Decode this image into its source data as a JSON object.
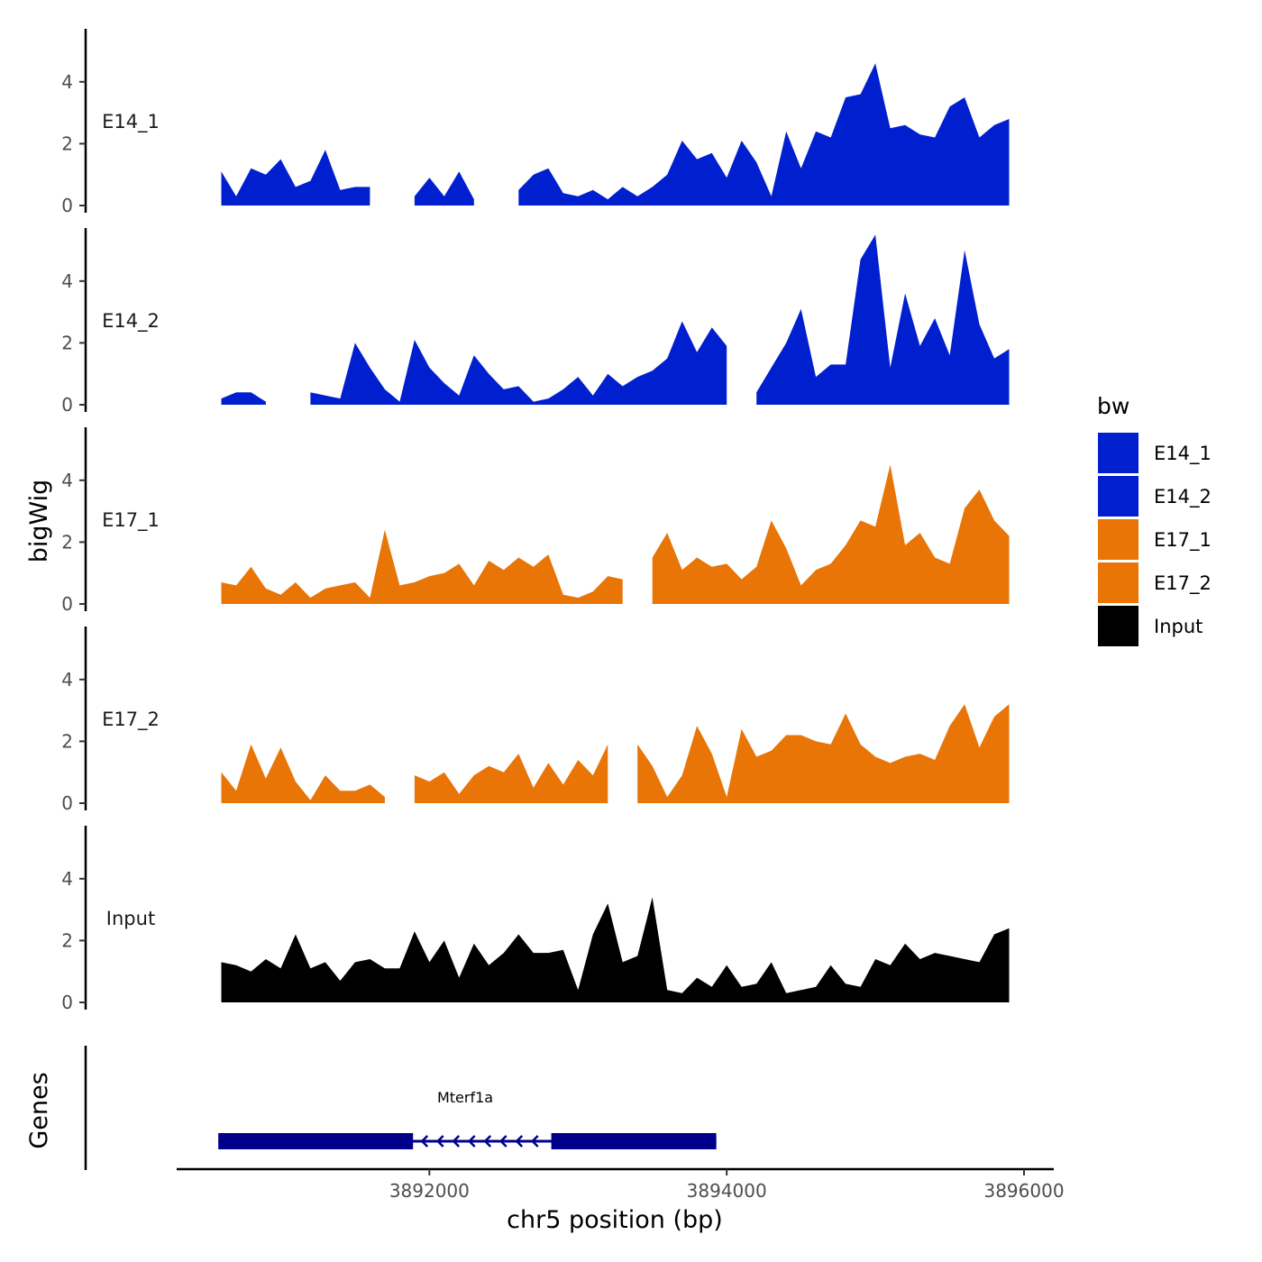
{
  "chart_data": {
    "type": "area",
    "title": "",
    "ylabel": "bigWig",
    "xlabel": "chr5 position (bp)",
    "genes_label": "Genes",
    "xlim": [
      3890300,
      3896200
    ],
    "ylim": [
      0,
      5.7
    ],
    "x_ticks": [
      3892000,
      3894000,
      3896000
    ],
    "x_tick_labels": [
      "3892000",
      "3894000",
      "3896000"
    ],
    "y_ticks": [
      0,
      2,
      4
    ],
    "y_tick_labels": [
      "0",
      "2",
      "4"
    ],
    "legend": {
      "title": "bw",
      "position": "right",
      "entries": [
        {
          "label": "E14_1",
          "color": "#0020D0"
        },
        {
          "label": "E14_2",
          "color": "#0020D0"
        },
        {
          "label": "E17_1",
          "color": "#E87506"
        },
        {
          "label": "E17_2",
          "color": "#E87506"
        },
        {
          "label": "Input",
          "color": "#000000"
        }
      ]
    },
    "series": [
      {
        "name": "E14_1",
        "color": "#0020D0",
        "x": [
          3890600,
          3890700,
          3890800,
          3890900,
          3891000,
          3891100,
          3891200,
          3891300,
          3891400,
          3891500,
          3891600,
          3891700,
          3891800,
          3891900,
          3892000,
          3892100,
          3892200,
          3892300,
          3892400,
          3892500,
          3892600,
          3892700,
          3892800,
          3892900,
          3893000,
          3893100,
          3893200,
          3893300,
          3893400,
          3893500,
          3893600,
          3893700,
          3893800,
          3893900,
          3894000,
          3894100,
          3894200,
          3894300,
          3894400,
          3894500,
          3894600,
          3894700,
          3894800,
          3894900,
          3895000,
          3895100,
          3895200,
          3895300,
          3895400,
          3895500,
          3895600,
          3895700,
          3895800,
          3895900
        ],
        "values": [
          1.1,
          0.3,
          1.2,
          1.0,
          1.5,
          0.6,
          0.8,
          1.8,
          0.5,
          0.6,
          0.6,
          null,
          null,
          0.3,
          0.9,
          0.3,
          1.1,
          0.2,
          null,
          null,
          0.5,
          1.0,
          1.2,
          0.4,
          0.3,
          0.5,
          0.2,
          0.6,
          0.3,
          0.6,
          1.0,
          2.1,
          1.5,
          1.7,
          0.9,
          2.1,
          1.4,
          0.3,
          2.4,
          1.2,
          2.4,
          2.2,
          3.5,
          3.6,
          4.6,
          2.5,
          2.6,
          2.3,
          2.2,
          3.2,
          3.5,
          2.2,
          2.6,
          2.8
        ],
        "label": "E14_1"
      },
      {
        "name": "E14_2",
        "color": "#0020D0",
        "x": [
          3890600,
          3890700,
          3890800,
          3890900,
          3891000,
          3891100,
          3891200,
          3891300,
          3891400,
          3891500,
          3891600,
          3891700,
          3891800,
          3891900,
          3892000,
          3892100,
          3892200,
          3892300,
          3892400,
          3892500,
          3892600,
          3892700,
          3892800,
          3892900,
          3893000,
          3893100,
          3893200,
          3893300,
          3893400,
          3893500,
          3893600,
          3893700,
          3893800,
          3893900,
          3894000,
          3894100,
          3894200,
          3894300,
          3894400,
          3894500,
          3894600,
          3894700,
          3894800,
          3894900,
          3895000,
          3895100,
          3895200,
          3895300,
          3895400,
          3895500,
          3895600,
          3895700,
          3895800,
          3895900
        ],
        "values": [
          0.2,
          0.4,
          0.4,
          0.1,
          null,
          null,
          0.4,
          0.3,
          0.2,
          2.0,
          1.2,
          0.5,
          0.1,
          2.1,
          1.2,
          0.7,
          0.3,
          1.6,
          1.0,
          0.5,
          0.6,
          0.1,
          0.2,
          0.5,
          0.9,
          0.3,
          1.0,
          0.6,
          0.9,
          1.1,
          1.5,
          2.7,
          1.7,
          2.5,
          1.9,
          null,
          0.4,
          1.2,
          2.0,
          3.1,
          0.9,
          1.3,
          1.3,
          4.7,
          5.5,
          1.2,
          3.6,
          1.9,
          2.8,
          1.6,
          5.0,
          2.6,
          1.5,
          1.8
        ],
        "label": "E14_2"
      },
      {
        "name": "E17_1",
        "color": "#E87506",
        "x": [
          3890600,
          3890700,
          3890800,
          3890900,
          3891000,
          3891100,
          3891200,
          3891300,
          3891400,
          3891500,
          3891600,
          3891700,
          3891800,
          3891900,
          3892000,
          3892100,
          3892200,
          3892300,
          3892400,
          3892500,
          3892600,
          3892700,
          3892800,
          3892900,
          3893000,
          3893100,
          3893200,
          3893300,
          3893400,
          3893500,
          3893600,
          3893700,
          3893800,
          3893900,
          3894000,
          3894100,
          3894200,
          3894300,
          3894400,
          3894500,
          3894600,
          3894700,
          3894800,
          3894900,
          3895000,
          3895100,
          3895200,
          3895300,
          3895400,
          3895500,
          3895600,
          3895700,
          3895800,
          3895900
        ],
        "values": [
          0.7,
          0.6,
          1.2,
          0.5,
          0.3,
          0.7,
          0.2,
          0.5,
          0.6,
          0.7,
          0.2,
          2.4,
          0.6,
          0.7,
          0.9,
          1.0,
          1.3,
          0.6,
          1.4,
          1.1,
          1.5,
          1.2,
          1.6,
          0.3,
          0.2,
          0.4,
          0.9,
          0.8,
          null,
          1.5,
          2.3,
          1.1,
          1.5,
          1.2,
          1.3,
          0.8,
          1.2,
          2.7,
          1.8,
          0.6,
          1.1,
          1.3,
          1.9,
          2.7,
          2.5,
          4.5,
          1.9,
          2.3,
          1.5,
          1.3,
          3.1,
          3.7,
          2.7,
          2.2
        ],
        "label": "E17_1"
      },
      {
        "name": "E17_2",
        "color": "#E87506",
        "x": [
          3890600,
          3890700,
          3890800,
          3890900,
          3891000,
          3891100,
          3891200,
          3891300,
          3891400,
          3891500,
          3891600,
          3891700,
          3891800,
          3891900,
          3892000,
          3892100,
          3892200,
          3892300,
          3892400,
          3892500,
          3892600,
          3892700,
          3892800,
          3892900,
          3893000,
          3893100,
          3893200,
          3893300,
          3893400,
          3893500,
          3893600,
          3893700,
          3893800,
          3893900,
          3894000,
          3894100,
          3894200,
          3894300,
          3894400,
          3894500,
          3894600,
          3894700,
          3894800,
          3894900,
          3895000,
          3895100,
          3895200,
          3895300,
          3895400,
          3895500,
          3895600,
          3895700,
          3895800,
          3895900
        ],
        "values": [
          1.0,
          0.4,
          1.9,
          0.8,
          1.8,
          0.7,
          0.1,
          0.9,
          0.4,
          0.4,
          0.6,
          0.2,
          null,
          0.9,
          0.7,
          1.0,
          0.3,
          0.9,
          1.2,
          1.0,
          1.6,
          0.5,
          1.3,
          0.6,
          1.4,
          0.9,
          1.9,
          null,
          1.9,
          1.2,
          0.2,
          0.9,
          2.5,
          1.6,
          0.2,
          2.4,
          1.5,
          1.7,
          2.2,
          2.2,
          2.0,
          1.9,
          2.9,
          1.9,
          1.5,
          1.3,
          1.5,
          1.6,
          1.4,
          2.5,
          3.2,
          1.8,
          2.8,
          3.2
        ],
        "label": "E17_2"
      },
      {
        "name": "Input",
        "color": "#000000",
        "x": [
          3890600,
          3890700,
          3890800,
          3890900,
          3891000,
          3891100,
          3891200,
          3891300,
          3891400,
          3891500,
          3891600,
          3891700,
          3891800,
          3891900,
          3892000,
          3892100,
          3892200,
          3892300,
          3892400,
          3892500,
          3892600,
          3892700,
          3892800,
          3892900,
          3893000,
          3893100,
          3893200,
          3893300,
          3893400,
          3893500,
          3893600,
          3893700,
          3893800,
          3893900,
          3894000,
          3894100,
          3894200,
          3894300,
          3894400,
          3894500,
          3894600,
          3894700,
          3894800,
          3894900,
          3895000,
          3895100,
          3895200,
          3895300,
          3895400,
          3895500,
          3895600,
          3895700,
          3895800,
          3895900
        ],
        "values": [
          1.3,
          1.2,
          1.0,
          1.4,
          1.1,
          2.2,
          1.1,
          1.3,
          0.7,
          1.3,
          1.4,
          1.1,
          1.1,
          2.3,
          1.3,
          2.0,
          0.8,
          1.9,
          1.2,
          1.6,
          2.2,
          1.6,
          1.6,
          1.7,
          0.4,
          2.2,
          3.2,
          1.3,
          1.5,
          3.4,
          0.4,
          0.3,
          0.8,
          0.5,
          1.2,
          0.5,
          0.6,
          1.3,
          0.3,
          0.4,
          0.5,
          1.2,
          0.6,
          0.5,
          1.4,
          1.2,
          1.9,
          1.4,
          1.6,
          1.5,
          1.4,
          1.3,
          2.2,
          2.4
        ],
        "label": "Input"
      }
    ],
    "gene_track": {
      "gene_name": "Mterf1a",
      "strand": "-",
      "color": "#00008B",
      "start": 3890580,
      "end": 3893930,
      "exons": [
        [
          3890580,
          3891890
        ],
        [
          3892820,
          3893930
        ]
      ]
    }
  }
}
